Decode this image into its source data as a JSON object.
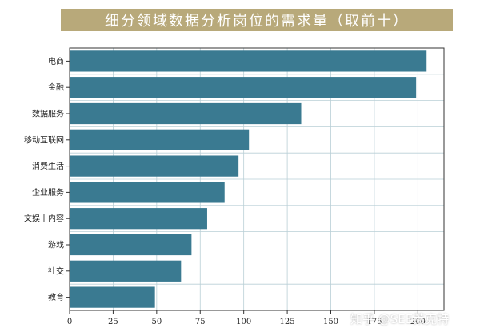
{
  "chart_data": {
    "type": "bar",
    "orientation": "horizontal",
    "title": "细分领域数据分析岗位的需求量（取前十）",
    "categories": [
      "电商",
      "金融",
      "数据服务",
      "移动互联网",
      "消费生活",
      "企业服务",
      "文娱丨内容",
      "游戏",
      "社交",
      "教育"
    ],
    "values": [
      205,
      199,
      133,
      103,
      97,
      89,
      79,
      70,
      64,
      49
    ],
    "xlim": [
      0,
      215
    ],
    "xticks": [
      0,
      25,
      50,
      75,
      100,
      125,
      150,
      175,
      200
    ],
    "grid": true,
    "bar_color": "#3a7a91",
    "title_band_color": "#b8a97a"
  },
  "watermark": "知乎 @SEE莱克特"
}
